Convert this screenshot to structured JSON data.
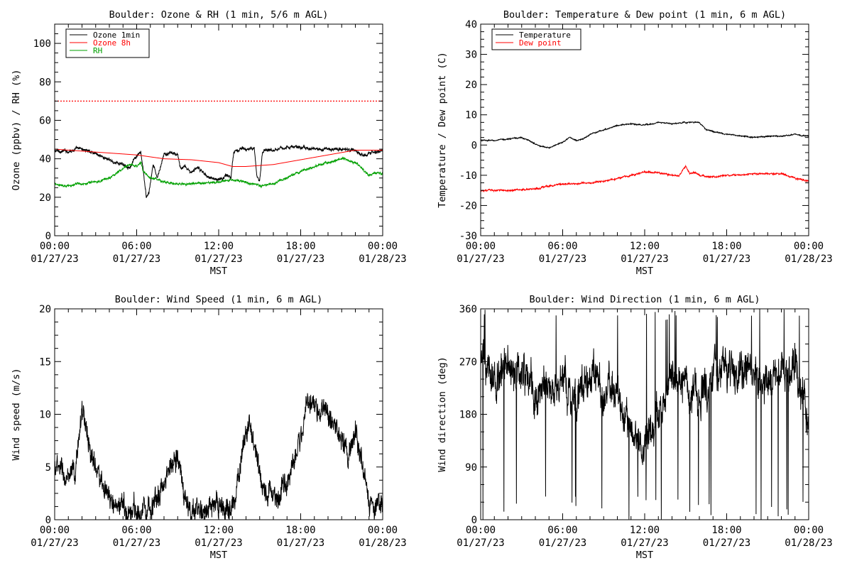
{
  "x_tick_times": [
    "00:00",
    "06:00",
    "12:00",
    "18:00",
    "00:00"
  ],
  "x_tick_dates": [
    "01/27/23",
    "01/27/23",
    "01/27/23",
    "01/27/23",
    "01/28/23"
  ],
  "x_axis_label": "MST",
  "chart_data": [
    {
      "type": "line",
      "title": "Boulder: Ozone & RH (1 min, 5/6 m AGL)",
      "xlabel": "MST",
      "ylabel": "Ozone (ppbv) / RH (%)",
      "x_range_hours": [
        0,
        24
      ],
      "ylim": [
        0,
        110
      ],
      "y_ticks": [
        0,
        20,
        40,
        60,
        80,
        100
      ],
      "legend_position": "top-left",
      "reference_line": {
        "y": 70,
        "style": "dotted",
        "color": "#ff0000"
      },
      "series": [
        {
          "name": "Ozone 1min",
          "color": "#000000",
          "noise": 1.2,
          "x": [
            0,
            0.5,
            1,
            1.5,
            2,
            2.5,
            3,
            3.5,
            3.8,
            4,
            4.5,
            5,
            5.5,
            6,
            6.3,
            6.5,
            6.7,
            6.9,
            7.2,
            7.5,
            8,
            8.5,
            9,
            9.2,
            9.5,
            10,
            10.5,
            11,
            11.5,
            12,
            12.3,
            12.6,
            12.9,
            13.1,
            13.3,
            14,
            14.6,
            14.8,
            15,
            15.2,
            15.5,
            16,
            17,
            18,
            19,
            20,
            21,
            22,
            22.5,
            23,
            23.5,
            24
          ],
          "y": [
            44,
            44,
            44,
            45,
            45,
            44,
            43,
            41,
            40,
            39,
            38,
            37,
            36,
            41,
            43,
            33,
            20,
            22,
            37,
            30,
            42,
            43,
            42,
            35,
            36,
            33,
            35,
            32,
            30,
            29,
            30,
            32,
            30,
            44,
            45,
            45,
            45,
            30,
            29,
            44,
            45,
            45,
            46,
            46,
            45,
            45,
            45,
            44,
            42,
            43,
            44,
            44
          ]
        },
        {
          "name": "Ozone 8h",
          "color": "#ff0000",
          "noise": 0,
          "x": [
            0,
            2,
            4,
            6,
            8,
            10,
            12,
            13,
            14,
            16,
            18,
            20,
            22,
            24
          ],
          "y": [
            45,
            44,
            43,
            42,
            40,
            39.5,
            38,
            36,
            36,
            37,
            39.5,
            42,
            44.5,
            44.5
          ]
        },
        {
          "name": "RH",
          "color": "#00a000",
          "noise": 0.8,
          "x": [
            0,
            1,
            2,
            3,
            4,
            5,
            5.5,
            6,
            6.3,
            6.5,
            7,
            8,
            9,
            10,
            11,
            12,
            13,
            14,
            15,
            16,
            17,
            18,
            19,
            20,
            21,
            22,
            22.5,
            23,
            23.5,
            24
          ],
          "y": [
            27,
            26,
            27,
            28,
            30,
            35,
            37,
            36,
            38,
            33,
            30,
            28,
            27,
            27,
            27,
            28,
            29,
            28,
            26,
            27,
            30,
            33,
            36,
            38,
            40,
            38,
            35,
            31,
            33,
            32
          ]
        }
      ]
    },
    {
      "type": "line",
      "title": "Boulder: Temperature & Dew point (1 min, 6 m AGL)",
      "xlabel": "MST",
      "ylabel": "Temperature / Dew point (C)",
      "x_range_hours": [
        0,
        24
      ],
      "ylim": [
        -30,
        40
      ],
      "y_ticks": [
        -30,
        -20,
        -10,
        0,
        10,
        20,
        30,
        40
      ],
      "legend_position": "top-left",
      "series": [
        {
          "name": "Temperature",
          "color": "#000000",
          "noise": 0.25,
          "x": [
            0,
            1,
            2,
            3,
            4,
            4.5,
            5,
            5.5,
            6,
            6.5,
            7,
            7.5,
            8,
            9,
            10,
            11,
            12,
            13,
            14,
            15,
            15.5,
            16,
            16.5,
            17,
            18,
            19,
            20,
            21,
            22,
            23,
            24
          ],
          "y": [
            1.5,
            1.5,
            2,
            2.5,
            0.5,
            -0.5,
            -1,
            0,
            1,
            2.5,
            1.5,
            2,
            3.5,
            5,
            6.5,
            7,
            6.5,
            7.5,
            7,
            7.5,
            7.5,
            7.5,
            5,
            4.5,
            3.5,
            3,
            2.5,
            3,
            3,
            3.5,
            3
          ]
        },
        {
          "name": "Dew point",
          "color": "#ff0000",
          "noise": 0.35,
          "x": [
            0,
            2,
            4,
            5,
            6,
            8,
            9,
            10,
            11,
            12,
            13,
            14,
            14.5,
            14.8,
            15,
            15.3,
            15.6,
            16,
            17,
            18,
            19,
            20,
            21,
            22,
            23,
            24
          ],
          "y": [
            -15,
            -15,
            -14.5,
            -13.5,
            -13,
            -12.5,
            -12,
            -11,
            -10,
            -9,
            -9,
            -10,
            -10,
            -8,
            -7,
            -9.5,
            -9,
            -10,
            -10.5,
            -10,
            -10,
            -9.5,
            -9.5,
            -9.5,
            -11,
            -12
          ]
        }
      ]
    },
    {
      "type": "line",
      "title": "Boulder: Wind Speed (1 min, 6 m AGL)",
      "xlabel": "MST",
      "ylabel": "Wind speed (m/s)",
      "x_range_hours": [
        0,
        24
      ],
      "ylim": [
        0,
        20
      ],
      "y_ticks": [
        0,
        5,
        10,
        15,
        20
      ],
      "series": [
        {
          "name": "",
          "color": "#000000",
          "noise": 1.5,
          "x": [
            0,
            0.5,
            1,
            1.5,
            2,
            2.5,
            3,
            3.5,
            4,
            5,
            6,
            7,
            8,
            8.5,
            9,
            9.5,
            10,
            11,
            12,
            12.5,
            13,
            13.5,
            14,
            14.5,
            15,
            15.5,
            16,
            17,
            18,
            18.5,
            19,
            20,
            21,
            21.5,
            22,
            22.5,
            23,
            23.5,
            24
          ],
          "y": [
            5,
            4.5,
            3.5,
            4,
            11,
            7,
            5,
            3,
            1.5,
            1,
            0.8,
            1.5,
            3,
            5.5,
            6.5,
            2,
            0.5,
            1,
            0.8,
            1,
            1.5,
            4,
            9,
            8,
            4,
            3,
            2,
            3,
            8,
            11.5,
            10.5,
            10,
            8,
            5,
            9,
            5,
            2,
            1.5,
            1.5
          ]
        }
      ]
    },
    {
      "type": "line",
      "title": "Boulder: Wind Direction (1 min, 6 m AGL)",
      "xlabel": "MST",
      "ylabel": "Wind direction (deg)",
      "x_range_hours": [
        0,
        24
      ],
      "ylim": [
        0,
        360
      ],
      "y_ticks": [
        0,
        90,
        180,
        270,
        360
      ],
      "series": [
        {
          "name": "",
          "color": "#000000",
          "noise": 45,
          "x": [
            0,
            1,
            2,
            3,
            4,
            5,
            6,
            7,
            8,
            9,
            10,
            11,
            12,
            13,
            14,
            15,
            16,
            17,
            18,
            19,
            20,
            21,
            22,
            23,
            24
          ],
          "y": [
            260,
            260,
            255,
            250,
            200,
            230,
            220,
            200,
            250,
            230,
            220,
            150,
            120,
            180,
            240,
            240,
            200,
            240,
            250,
            250,
            245,
            245,
            255,
            270,
            190
          ]
        }
      ]
    }
  ]
}
